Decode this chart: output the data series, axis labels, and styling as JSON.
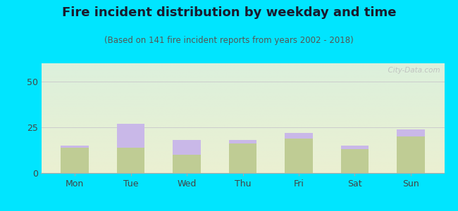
{
  "title": "Fire incident distribution by weekday and time",
  "subtitle": "(Based on 141 fire incident reports from years 2002 - 2018)",
  "days": [
    "Mon",
    "Tue",
    "Wed",
    "Thu",
    "Fri",
    "Sat",
    "Sun"
  ],
  "pm_values": [
    14,
    14,
    10,
    16,
    19,
    13,
    20
  ],
  "am_values": [
    1,
    13,
    8,
    2,
    3,
    2,
    4
  ],
  "am_color": "#c9b8e8",
  "pm_color": "#bfcc94",
  "background_outer": "#00e5ff",
  "ylim": [
    0,
    60
  ],
  "yticks": [
    0,
    25,
    50
  ],
  "bar_width": 0.5,
  "title_fontsize": 13,
  "subtitle_fontsize": 8.5,
  "watermark": "  City-Data.com"
}
